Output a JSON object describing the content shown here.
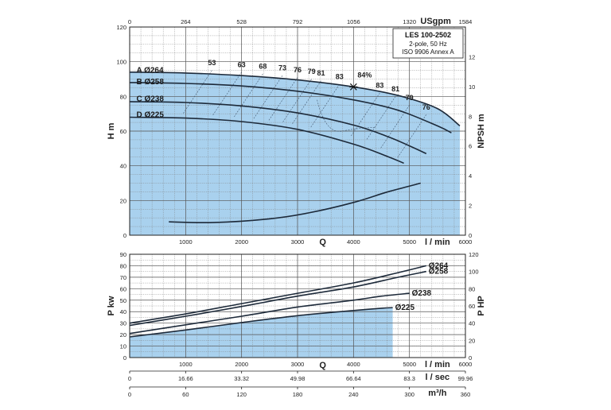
{
  "chart_data": [
    {
      "type": "line",
      "title": "LES 100-2502",
      "subtitle_lines": [
        "2-pole, 50 Hz",
        "ISO 9906 Annex A"
      ],
      "xlabel": "Q",
      "x_unit": "l / min",
      "xlim": [
        0,
        6000
      ],
      "x_ticks": [
        1000,
        2000,
        3000,
        4000,
        5000,
        6000
      ],
      "ylabel": "H m",
      "ylim": [
        0,
        120
      ],
      "y_ticks": [
        0,
        20,
        40,
        60,
        80,
        100,
        120
      ],
      "secondary_y": {
        "label": "NPSH m",
        "lim": [
          0,
          14
        ],
        "ticks": [
          0,
          2,
          4,
          6,
          8,
          10,
          12
        ]
      },
      "top_axis": {
        "label": "USgpm",
        "ticks": [
          "0",
          "264",
          "528",
          "792",
          "1056",
          "1320",
          "1584"
        ]
      },
      "series": [
        {
          "name": "A Ø264",
          "x": [
            0,
            1000,
            2000,
            3000,
            4000,
            4800,
            5500,
            5900
          ],
          "values": [
            94,
            93.5,
            92,
            89.5,
            85.5,
            80.5,
            73,
            63
          ]
        },
        {
          "name": "B Ø258",
          "x": [
            0,
            1000,
            2000,
            3000,
            4000,
            4800,
            5500,
            5750
          ],
          "values": [
            88,
            87.5,
            86,
            83,
            78,
            72,
            63,
            59
          ]
        },
        {
          "name": "C Ø238",
          "x": [
            0,
            1000,
            2000,
            3000,
            4000,
            4600,
            5000,
            5300
          ],
          "values": [
            77,
            76.5,
            74.5,
            70.5,
            63.5,
            57,
            51.5,
            47
          ]
        },
        {
          "name": "D Ø225",
          "x": [
            0,
            1000,
            2000,
            3000,
            4000,
            4600,
            4900
          ],
          "values": [
            68,
            67.5,
            65.5,
            61,
            52.5,
            45.5,
            41.5
          ]
        },
        {
          "name": "NPSH",
          "axis": "secondary",
          "x": [
            700,
            1500,
            2500,
            3200,
            4000,
            4600,
            5200
          ],
          "values": [
            0.9,
            0.85,
            1.1,
            1.5,
            2.2,
            2.9,
            3.5
          ]
        }
      ],
      "efficiency_labels": [
        "53",
        "63",
        "68",
        "73",
        "76",
        "79",
        "81",
        "83",
        "84%",
        "83",
        "81",
        "79",
        "76"
      ],
      "efficiency_label_positions": [
        {
          "label": "53",
          "x": 1470,
          "y": 97.5
        },
        {
          "label": "63",
          "x": 2000,
          "y": 96.5
        },
        {
          "label": "68",
          "x": 2380,
          "y": 95.5
        },
        {
          "label": "73",
          "x": 2730,
          "y": 94.5
        },
        {
          "label": "76",
          "x": 3000,
          "y": 93.5
        },
        {
          "label": "79",
          "x": 3250,
          "y": 92.5
        },
        {
          "label": "81",
          "x": 3420,
          "y": 91.5
        },
        {
          "label": "83",
          "x": 3750,
          "y": 89.5
        },
        {
          "label": "84%",
          "x": 4200,
          "y": 90.5
        },
        {
          "label": "83",
          "x": 4470,
          "y": 84.5
        },
        {
          "label": "81",
          "x": 4750,
          "y": 82.5
        },
        {
          "label": "79",
          "x": 5000,
          "y": 77.5
        },
        {
          "label": "76",
          "x": 5300,
          "y": 72
        }
      ],
      "bep_marker": {
        "x": 4000,
        "y": 85.5
      },
      "curve_labels": [
        {
          "text": "A Ø264",
          "x": 120,
          "y": 95
        },
        {
          "text": "B Ø258",
          "x": 120,
          "y": 88.5
        },
        {
          "text": "C Ø238",
          "x": 120,
          "y": 78.5
        },
        {
          "text": "D Ø225",
          "x": 120,
          "y": 69.5
        }
      ]
    },
    {
      "type": "line",
      "xlabel": "Q",
      "x_unit": "l / min",
      "xlim": [
        0,
        6000
      ],
      "x_ticks": [
        1000,
        2000,
        3000,
        4000,
        5000,
        6000
      ],
      "ylabel": "P kw",
      "ylim": [
        0,
        90
      ],
      "y_ticks": [
        0,
        10,
        20,
        30,
        40,
        50,
        60,
        70,
        80,
        90
      ],
      "secondary_y": {
        "label": "P HP",
        "lim": [
          0,
          120
        ],
        "ticks": [
          0,
          20,
          40,
          60,
          80,
          100,
          120
        ]
      },
      "bottom_axes": [
        {
          "label": "l / sec",
          "ticks": [
            "0",
            "16.66",
            "33.32",
            "49.98",
            "66.64",
            "83.3",
            "99.96"
          ]
        },
        {
          "label": "m³/h",
          "ticks": [
            "0",
            "60",
            "120",
            "180",
            "240",
            "300",
            "360"
          ]
        }
      ],
      "series": [
        {
          "name": "Ø264",
          "x": [
            0,
            1000,
            2000,
            3000,
            4000,
            4800,
            5300
          ],
          "values": [
            30,
            38,
            47,
            56,
            65,
            74,
            80
          ]
        },
        {
          "name": "Ø258",
          "x": [
            0,
            1000,
            2000,
            3000,
            4000,
            4800,
            5300
          ],
          "values": [
            28,
            36,
            44.5,
            53.5,
            61.5,
            70,
            75
          ]
        },
        {
          "name": "Ø238",
          "x": [
            0,
            1000,
            2000,
            3000,
            4000,
            4500,
            5000
          ],
          "values": [
            21,
            28.5,
            36,
            44,
            50,
            53.5,
            56
          ]
        },
        {
          "name": "Ø225",
          "x": [
            0,
            1000,
            2000,
            3000,
            4000,
            4500,
            4700
          ],
          "values": [
            18,
            24,
            30.5,
            36.5,
            41,
            43,
            43.5
          ]
        }
      ],
      "curve_labels": [
        "Ø264",
        "Ø258",
        "Ø238",
        "Ø225"
      ]
    }
  ]
}
